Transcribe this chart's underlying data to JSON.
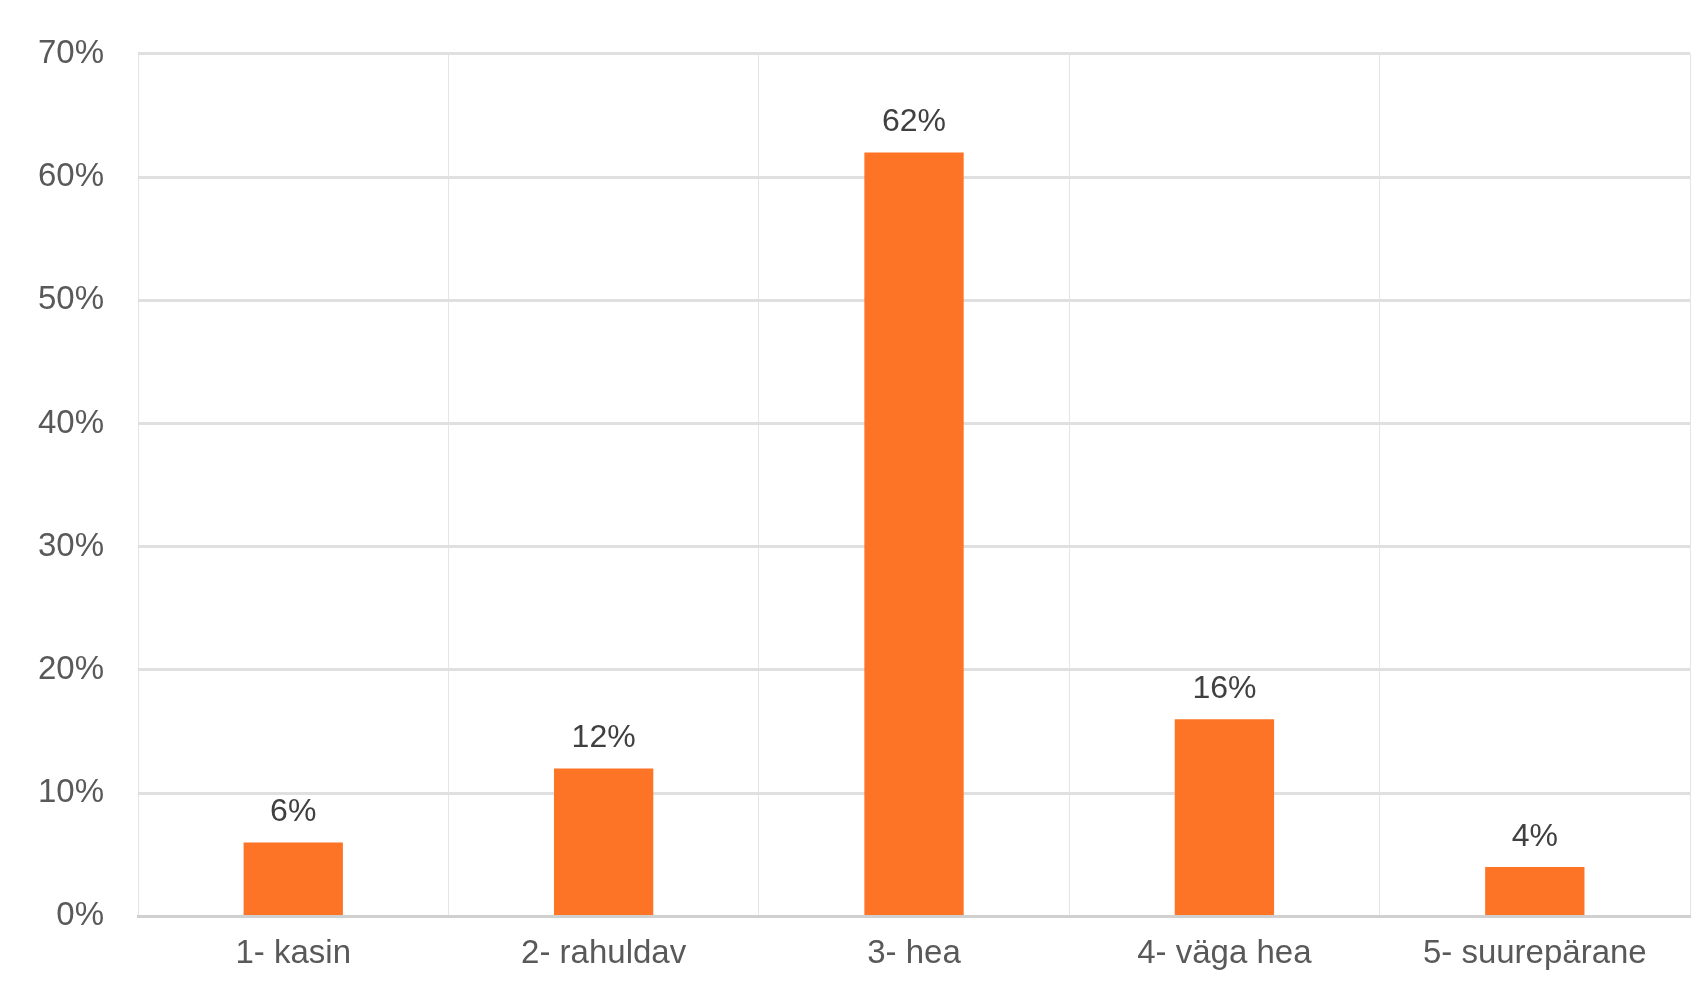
{
  "chart_data": {
    "type": "bar",
    "categories": [
      "1- kasin",
      "2- rahuldav",
      "3- hea",
      "4- väga hea",
      "5- suurepärane"
    ],
    "values": [
      6,
      12,
      62,
      16,
      4
    ],
    "value_labels": [
      "6%",
      "12%",
      "62%",
      "16%",
      "4%"
    ],
    "color": "#fe7426",
    "ylim": [
      0,
      70
    ],
    "yticks": [
      {
        "value": 0,
        "label": "0%"
      },
      {
        "value": 10,
        "label": "10%"
      },
      {
        "value": 20,
        "label": "20%"
      },
      {
        "value": 30,
        "label": "30%"
      },
      {
        "value": 40,
        "label": "40%"
      },
      {
        "value": 50,
        "label": "50%"
      },
      {
        "value": 60,
        "label": "60%"
      },
      {
        "value": 70,
        "label": "70%"
      }
    ],
    "grid": true,
    "legend": false
  }
}
